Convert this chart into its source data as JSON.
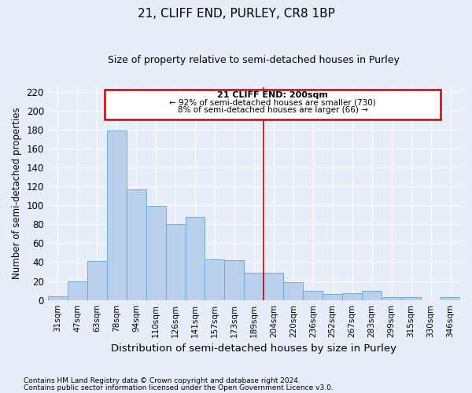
{
  "title": "21, CLIFF END, PURLEY, CR8 1BP",
  "subtitle": "Size of property relative to semi-detached houses in Purley",
  "xlabel": "Distribution of semi-detached houses by size in Purley",
  "ylabel": "Number of semi-detached properties",
  "categories": [
    "31sqm",
    "47sqm",
    "63sqm",
    "78sqm",
    "94sqm",
    "110sqm",
    "126sqm",
    "141sqm",
    "157sqm",
    "173sqm",
    "189sqm",
    "204sqm",
    "220sqm",
    "236sqm",
    "252sqm",
    "267sqm",
    "283sqm",
    "299sqm",
    "315sqm",
    "330sqm",
    "346sqm"
  ],
  "values": [
    4,
    20,
    41,
    179,
    117,
    99,
    80,
    88,
    43,
    42,
    29,
    29,
    19,
    10,
    6,
    7,
    10,
    3,
    3,
    0,
    3
  ],
  "bar_color": "#b8d0eb",
  "bar_edgecolor": "#6aaed6",
  "background_color": "#e8eef8",
  "plot_bg_color": "#e8eef8",
  "grid_color": "#ffffff",
  "vline_color": "#cc0000",
  "annotation_title": "21 CLIFF END: 200sqm",
  "annotation_line1": "← 92% of semi-detached houses are smaller (730)",
  "annotation_line2": "8% of semi-detached houses are larger (66) →",
  "annotation_box_color": "#cc0000",
  "ylim": [
    0,
    225
  ],
  "yticks": [
    0,
    20,
    40,
    60,
    80,
    100,
    120,
    140,
    160,
    180,
    200,
    220
  ],
  "footnote1": "Contains HM Land Registry data © Crown copyright and database right 2024.",
  "footnote2": "Contains public sector information licensed under the Open Government Licence v3.0."
}
